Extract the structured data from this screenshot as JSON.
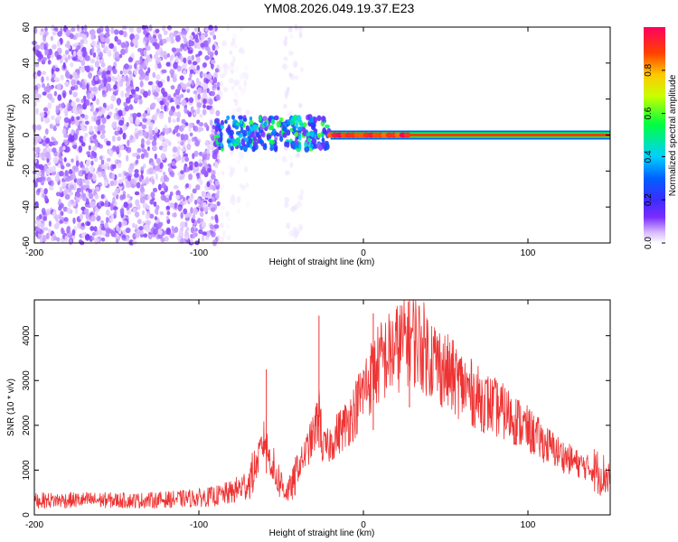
{
  "title": "YM08.2026.049.19.37.E23",
  "chart_data": [
    {
      "type": "heatmap",
      "xlabel": "Height of straight line (km)",
      "ylabel": "Frequency (Hz)",
      "xlim": [
        -200,
        150
      ],
      "ylim": [
        -60,
        60
      ],
      "xticks": [
        -200,
        -100,
        0,
        100
      ],
      "yticks": [
        -60,
        -40,
        -20,
        0,
        20,
        40,
        60
      ],
      "colorbar": {
        "label": "Normalized spectral amplitude",
        "range": [
          0,
          1
        ],
        "ticks": [
          "0.0",
          "0.2",
          "0.4",
          "0.6",
          "0.8"
        ],
        "colors": [
          "#ffffff",
          "#d7b8ff",
          "#7a2cff",
          "#3b2cff",
          "#0060ff",
          "#00d0ff",
          "#00ff40",
          "#c8ff00",
          "#ffc800",
          "#ff4000",
          "#ff0060"
        ]
      },
      "regions": [
        {
          "x": [
            -200,
            -88
          ],
          "f": [
            -60,
            60
          ],
          "amplitude": 0.12
        },
        {
          "x": [
            -88,
            -70
          ],
          "f": [
            -60,
            60
          ],
          "amplitude": 0.03
        },
        {
          "x": [
            -48,
            -37
          ],
          "f": [
            -60,
            60
          ],
          "amplitude": 0.04
        },
        {
          "x": [
            -90,
            -20
          ],
          "f": [
            -8,
            10
          ],
          "amplitude": 0.4
        },
        {
          "x": [
            -20,
            150
          ],
          "f": [
            -1.5,
            1.5
          ],
          "amplitude": 0.95
        }
      ]
    },
    {
      "type": "line",
      "xlabel": "Height of straight line (km)",
      "ylabel": "SNR (10 * v/v)",
      "xlim": [
        -200,
        150
      ],
      "ylim": [
        0,
        4800
      ],
      "xticks": [
        -200,
        -100,
        0,
        100
      ],
      "yticks": [
        0,
        1000,
        2000,
        3000,
        4000
      ],
      "color": "#ee3333",
      "x": [
        -200,
        -180,
        -160,
        -140,
        -120,
        -100,
        -90,
        -80,
        -70,
        -65,
        -62,
        -60,
        -58,
        -55,
        -50,
        -47,
        -45,
        -42,
        -40,
        -35,
        -30,
        -28,
        -27,
        -26,
        -25,
        -22,
        -20,
        -15,
        -10,
        -5,
        0,
        5,
        10,
        15,
        20,
        25,
        28,
        30,
        35,
        40,
        50,
        60,
        70,
        80,
        90,
        100,
        110,
        120,
        130,
        140,
        150
      ],
      "values": [
        320,
        330,
        330,
        320,
        340,
        380,
        420,
        500,
        700,
        1100,
        1500,
        1700,
        1400,
        1000,
        700,
        520,
        560,
        750,
        1000,
        1400,
        1800,
        2100,
        2500,
        2000,
        1500,
        1500,
        1600,
        1850,
        2050,
        2350,
        2800,
        3100,
        3400,
        3550,
        3700,
        3900,
        4000,
        3950,
        3800,
        3600,
        3200,
        2900,
        2600,
        2400,
        2200,
        1900,
        1600,
        1350,
        1150,
        1000,
        850
      ],
      "spikes": [
        {
          "x": -59,
          "value": 3250
        },
        {
          "x": -27,
          "value": 4450
        },
        {
          "x": 6,
          "value": 4500
        },
        {
          "x": 28,
          "value": 4750
        }
      ]
    }
  ]
}
